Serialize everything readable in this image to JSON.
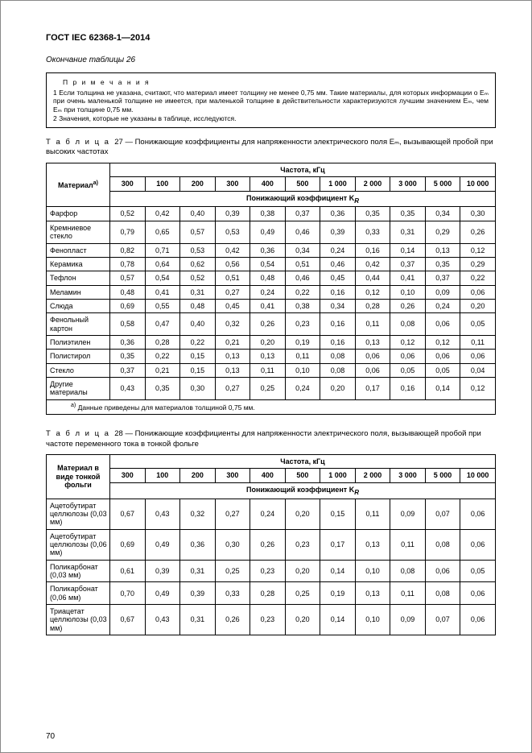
{
  "doc": {
    "standard": "ГОСТ IEC 62368-1—2014",
    "continuation": "Окончание таблицы 26",
    "page_number": "70"
  },
  "notes_box": {
    "title": "П р и м е ч а н и я",
    "line1": "1 Если толщина не указана, считают, что материал имеет толщину не менее 0,75 мм. Такие материалы, для которых информации о Eₘ при очень маленькой толщине не имеется, при маленькой толщине в действительности характеризуются лучшим значением Eₘ, чем Eₘ при толщине 0,75 мм.",
    "line2": "2 Значения, которые не указаны в таблице, исследуются."
  },
  "table27": {
    "caption_label": "Т а б л и ц а",
    "caption_num": "27",
    "caption_text": " — Понижающие коэффициенты для напряженности электрического поля Eₘ, вызывающей пробой при высоких частотах",
    "material_head": "Материал",
    "material_sup": "a)",
    "freq_head": "Частота, кГц",
    "coef_head": "Понижающий коэффициент K",
    "coef_sub": "R",
    "freqs": [
      "300",
      "100",
      "200",
      "300",
      "400",
      "500",
      "1 000",
      "2 000",
      "3 000",
      "5 000",
      "10 000"
    ],
    "rows": [
      {
        "m": "Фарфор",
        "v": [
          "0,52",
          "0,42",
          "0,40",
          "0,39",
          "0,38",
          "0,37",
          "0,36",
          "0,35",
          "0,35",
          "0,34",
          "0,30"
        ]
      },
      {
        "m": "Кремниевое стекло",
        "v": [
          "0,79",
          "0,65",
          "0,57",
          "0,53",
          "0,49",
          "0,46",
          "0,39",
          "0,33",
          "0,31",
          "0,29",
          "0,26"
        ]
      },
      {
        "m": "Фенопласт",
        "v": [
          "0,82",
          "0,71",
          "0,53",
          "0,42",
          "0,36",
          "0,34",
          "0,24",
          "0,16",
          "0,14",
          "0,13",
          "0,12"
        ]
      },
      {
        "m": "Керамика",
        "v": [
          "0,78",
          "0,64",
          "0,62",
          "0,56",
          "0,54",
          "0,51",
          "0,46",
          "0,42",
          "0,37",
          "0,35",
          "0,29"
        ]
      },
      {
        "m": "Тефлон",
        "v": [
          "0,57",
          "0,54",
          "0,52",
          "0,51",
          "0,48",
          "0,46",
          "0,45",
          "0,44",
          "0,41",
          "0,37",
          "0,22"
        ]
      },
      {
        "m": "Меламин",
        "v": [
          "0,48",
          "0,41",
          "0,31",
          "0,27",
          "0,24",
          "0,22",
          "0,16",
          "0,12",
          "0,10",
          "0,09",
          "0,06"
        ]
      },
      {
        "m": "Слюда",
        "v": [
          "0,69",
          "0,55",
          "0,48",
          "0,45",
          "0,41",
          "0,38",
          "0,34",
          "0,28",
          "0,26",
          "0,24",
          "0,20"
        ]
      },
      {
        "m": "Фенольный картон",
        "v": [
          "0,58",
          "0,47",
          "0,40",
          "0,32",
          "0,26",
          "0,23",
          "0,16",
          "0,11",
          "0,08",
          "0,06",
          "0,05"
        ]
      },
      {
        "m": "Полиэтилен",
        "v": [
          "0,36",
          "0,28",
          "0,22",
          "0,21",
          "0,20",
          "0,19",
          "0,16",
          "0,13",
          "0,12",
          "0,12",
          "0,11"
        ]
      },
      {
        "m": "Полистирол",
        "v": [
          "0,35",
          "0,22",
          "0,15",
          "0,13",
          "0,13",
          "0,11",
          "0,08",
          "0,06",
          "0,06",
          "0,06",
          "0,06"
        ]
      },
      {
        "m": "Стекло",
        "v": [
          "0,37",
          "0,21",
          "0,15",
          "0,13",
          "0,11",
          "0,10",
          "0,08",
          "0,06",
          "0,05",
          "0,05",
          "0,04"
        ]
      },
      {
        "m": "Другие материалы",
        "v": [
          "0,43",
          "0,35",
          "0,30",
          "0,27",
          "0,25",
          "0,24",
          "0,20",
          "0,17",
          "0,16",
          "0,14",
          "0,12"
        ]
      }
    ],
    "footnote": "Данные приведены для материалов толщиной 0,75 мм.",
    "footnote_marker": "a)"
  },
  "table28": {
    "caption_label": "Т а б л и ц а",
    "caption_num": "28",
    "caption_text": " — Понижающие коэффициенты для напряженности электрического поля, вызывающей пробой при частоте переменного тока в тонкой фольге",
    "material_head": "Материал в виде тонкой фольги",
    "freq_head": "Частота, кГц",
    "coef_head": "Понижающий коэффициент K",
    "coef_sub": "R",
    "freqs": [
      "300",
      "100",
      "200",
      "300",
      "400",
      "500",
      "1 000",
      "2 000",
      "3 000",
      "5 000",
      "10 000"
    ],
    "rows": [
      {
        "m": "Ацетобутират целлюлозы (0,03 мм)",
        "v": [
          "0,67",
          "0,43",
          "0,32",
          "0,27",
          "0,24",
          "0,20",
          "0,15",
          "0,11",
          "0,09",
          "0,07",
          "0,06"
        ]
      },
      {
        "m": "Ацетобутират целлюлозы (0,06 мм)",
        "v": [
          "0,69",
          "0,49",
          "0,36",
          "0,30",
          "0,26",
          "0,23",
          "0,17",
          "0,13",
          "0,11",
          "0,08",
          "0,06"
        ]
      },
      {
        "m": "Поликарбонат (0,03 мм)",
        "v": [
          "0,61",
          "0,39",
          "0,31",
          "0,25",
          "0,23",
          "0,20",
          "0,14",
          "0,10",
          "0,08",
          "0,06",
          "0,05"
        ]
      },
      {
        "m": "Поликарбонат (0,06 мм)",
        "v": [
          "0,70",
          "0,49",
          "0,39",
          "0,33",
          "0,28",
          "0,25",
          "0,19",
          "0,13",
          "0,11",
          "0,08",
          "0,06"
        ]
      },
      {
        "m": "Триацетат целлюлозы (0,03 мм)",
        "v": [
          "0,67",
          "0,43",
          "0,31",
          "0,26",
          "0,23",
          "0,20",
          "0,14",
          "0,10",
          "0,09",
          "0,07",
          "0,06"
        ]
      }
    ]
  }
}
